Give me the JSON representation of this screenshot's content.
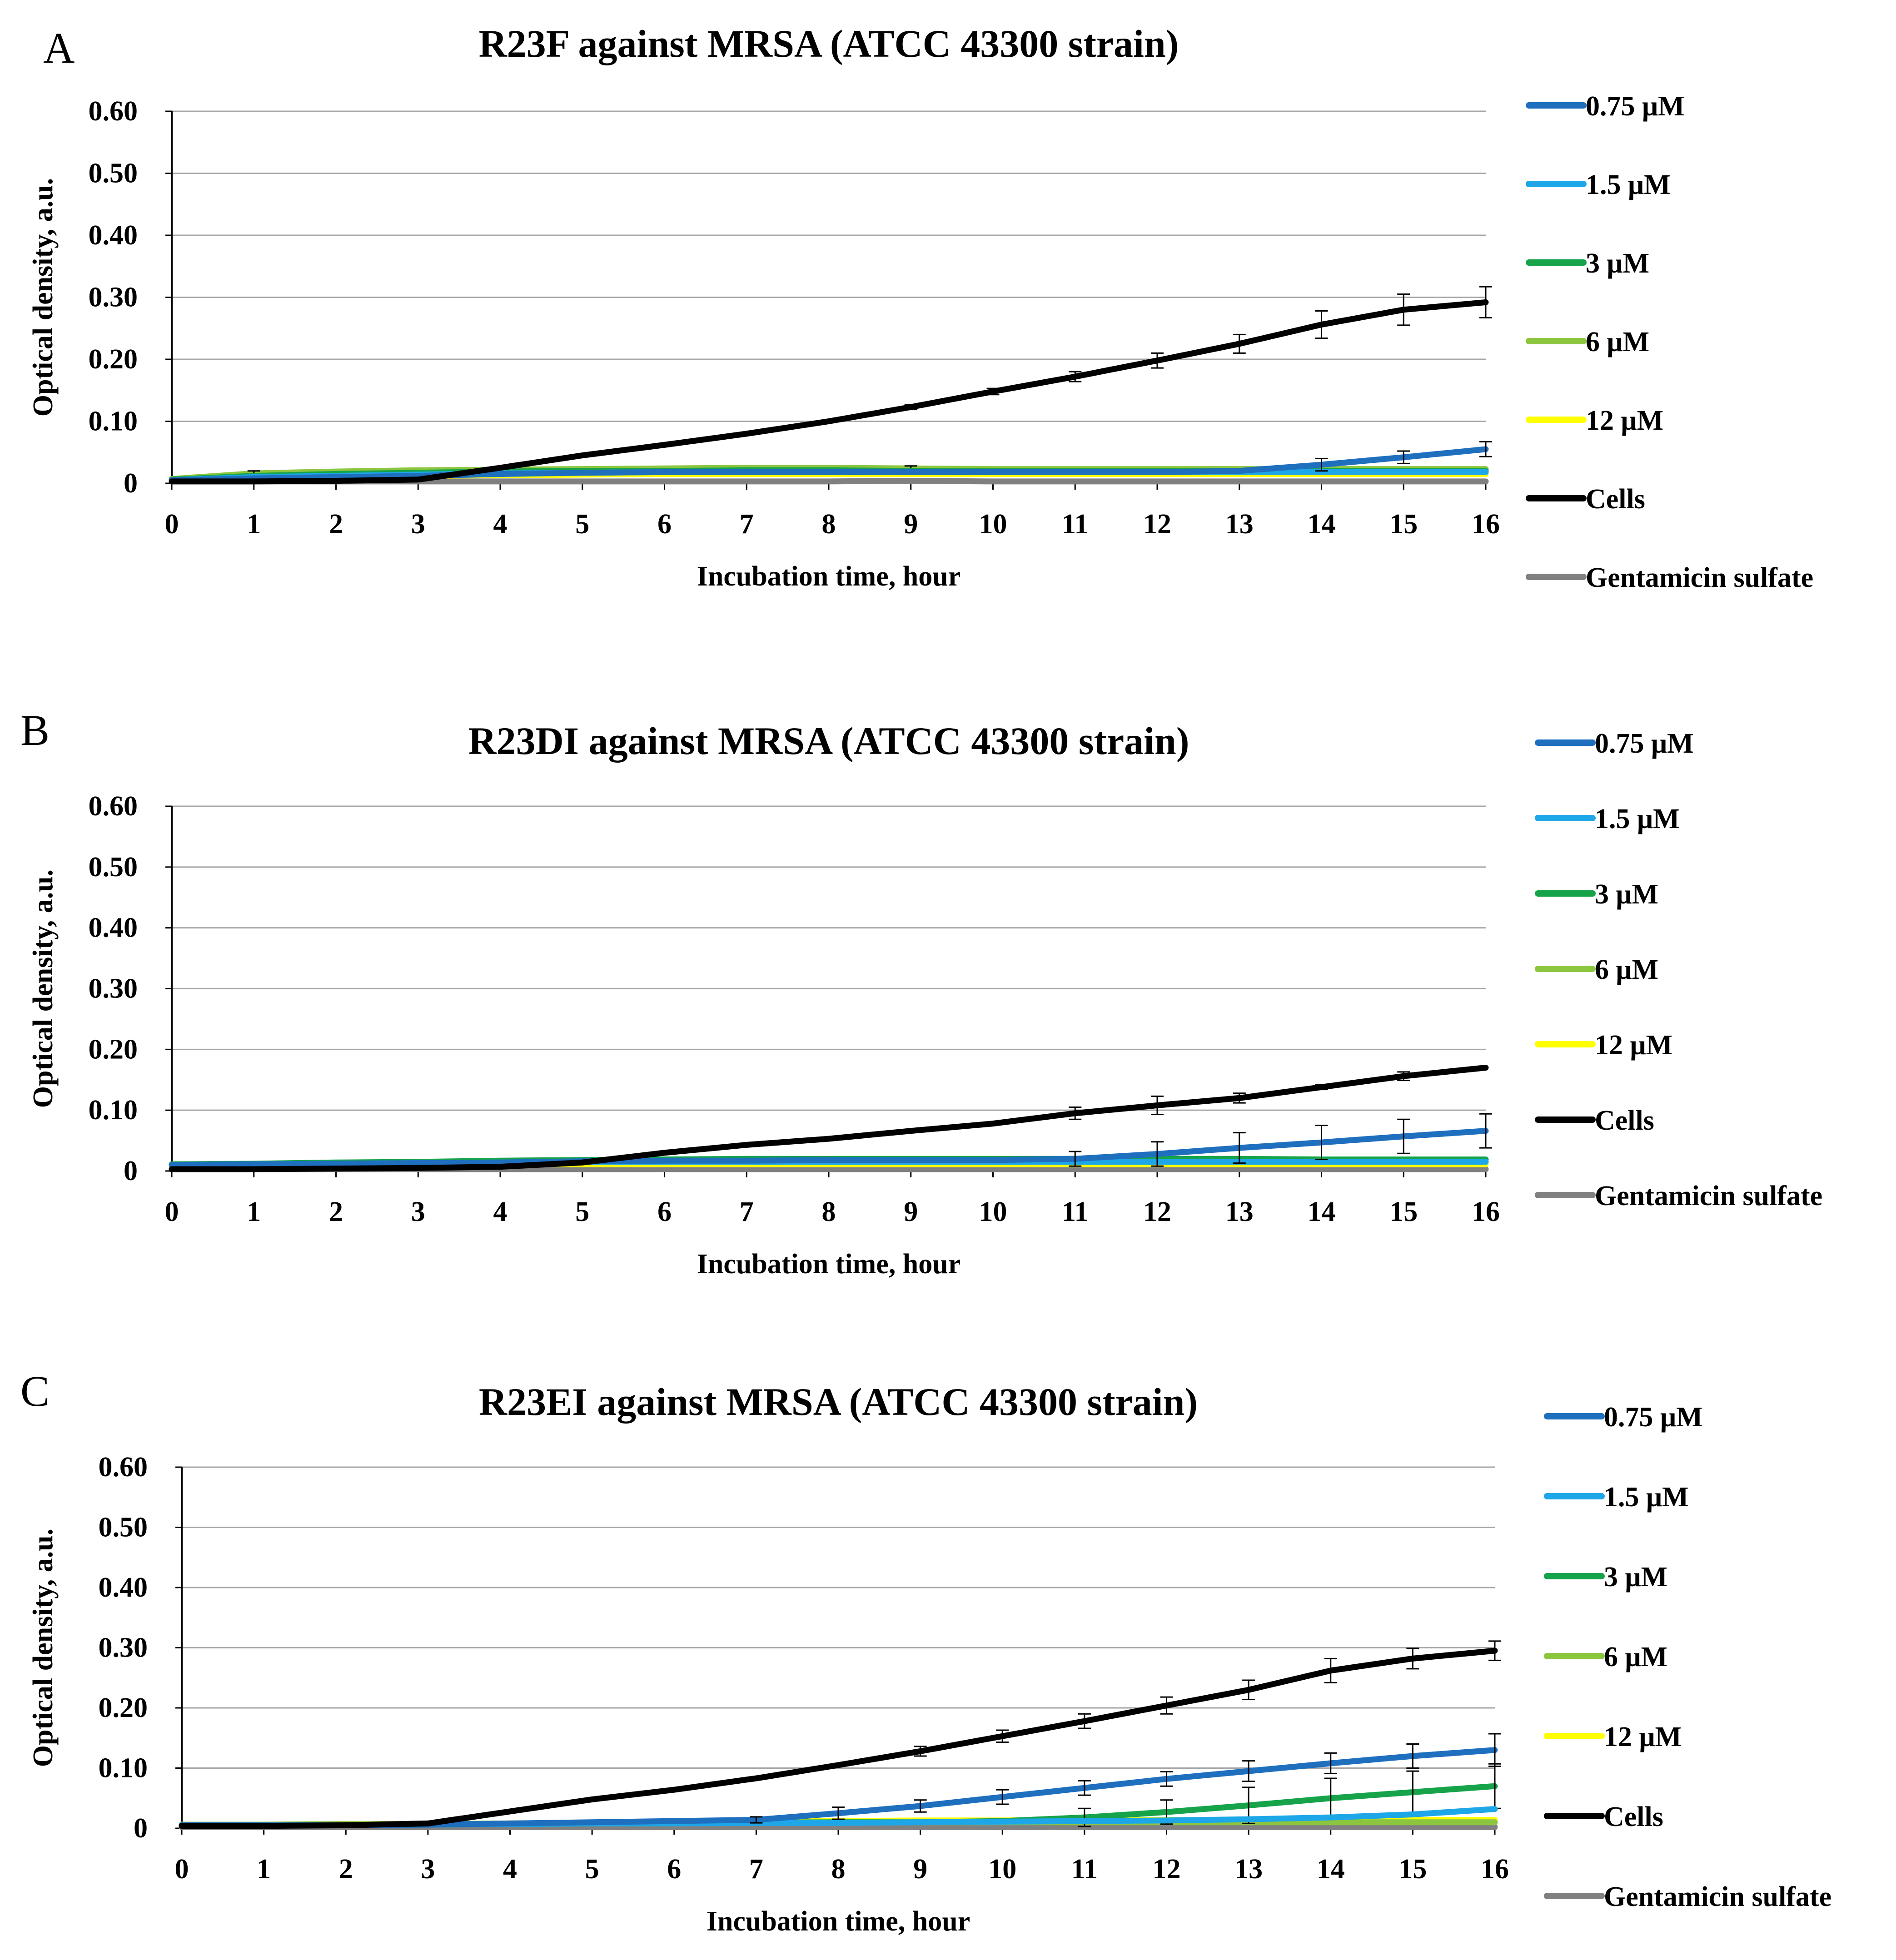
{
  "figure": {
    "panels": [
      {
        "letter": "A"
      },
      {
        "letter": "B"
      },
      {
        "letter": "C"
      }
    ]
  },
  "colors": {
    "c075": "#1f6fbf",
    "c15": "#1ea7e8",
    "c3": "#16a34a",
    "c6": "#8cc63f",
    "c12": "#ffff00",
    "cells": "#000000",
    "gentamicin": "#808080",
    "grid": "#a6a6a6"
  },
  "chart_data": [
    {
      "type": "line",
      "title": "R23F against MRSA (ATCC 43300 strain)",
      "xlabel": "Incubation time, hour",
      "ylabel": "Optical density, a.u.",
      "x": [
        0,
        1,
        2,
        3,
        4,
        5,
        6,
        7,
        8,
        9,
        10,
        11,
        12,
        13,
        14,
        15,
        16
      ],
      "ylim": [
        0,
        0.6
      ],
      "yticks": [
        0,
        0.1,
        0.2,
        0.3,
        0.4,
        0.5,
        0.6
      ],
      "ytick_labels": [
        "0",
        "0.10",
        "0.20",
        "0.30",
        "0.40",
        "0.50",
        "0.60"
      ],
      "xtick_labels": [
        "0",
        "1",
        "2",
        "3",
        "4",
        "5",
        "6",
        "7",
        "8",
        "9",
        "10",
        "11",
        "12",
        "13",
        "14",
        "15",
        "16"
      ],
      "grid": true,
      "legend_position": "right",
      "series": [
        {
          "name": "0.75 μM",
          "color": "#1f6fbf",
          "values": [
            0.005,
            0.008,
            0.01,
            0.012,
            0.015,
            0.017,
            0.018,
            0.018,
            0.018,
            0.018,
            0.018,
            0.018,
            0.018,
            0.02,
            0.03,
            0.042,
            0.055
          ],
          "errors": [
            0,
            0,
            0,
            0,
            0,
            0,
            0,
            0,
            0,
            0,
            0,
            0,
            0,
            0,
            0.01,
            0.01,
            0.012
          ]
        },
        {
          "name": "1.5 μM",
          "color": "#1ea7e8",
          "values": [
            0.005,
            0.01,
            0.012,
            0.014,
            0.016,
            0.017,
            0.018,
            0.018,
            0.018,
            0.018,
            0.018,
            0.018,
            0.018,
            0.018,
            0.018,
            0.018,
            0.018
          ],
          "errors": []
        },
        {
          "name": "3 μM",
          "color": "#16a34a",
          "values": [
            0.006,
            0.012,
            0.015,
            0.017,
            0.019,
            0.02,
            0.02,
            0.021,
            0.021,
            0.02,
            0.02,
            0.02,
            0.02,
            0.02,
            0.02,
            0.02,
            0.02
          ],
          "errors": []
        },
        {
          "name": "6 μM",
          "color": "#8cc63f",
          "values": [
            0.007,
            0.016,
            0.019,
            0.021,
            0.022,
            0.023,
            0.024,
            0.025,
            0.025,
            0.024,
            0.023,
            0.023,
            0.023,
            0.023,
            0.023,
            0.023,
            0.023
          ],
          "errors": [
            0,
            0.004,
            0,
            0,
            0,
            0,
            0,
            0,
            0,
            0.004,
            0,
            0,
            0,
            0,
            0,
            0,
            0
          ]
        },
        {
          "name": "12 μM",
          "color": "#ffff00",
          "values": [
            0.004,
            0.008,
            0.01,
            0.012,
            0.013,
            0.014,
            0.015,
            0.015,
            0.015,
            0.015,
            0.015,
            0.015,
            0.015,
            0.015,
            0.015,
            0.015,
            0.015
          ],
          "errors": []
        },
        {
          "name": "Cells",
          "color": "#000000",
          "values": [
            0.003,
            0.003,
            0.004,
            0.006,
            0.025,
            0.045,
            0.062,
            0.08,
            0.1,
            0.123,
            0.148,
            0.172,
            0.198,
            0.225,
            0.256,
            0.28,
            0.292
          ],
          "errors": [
            0,
            0,
            0,
            0,
            0,
            0,
            0,
            0,
            0,
            0.004,
            0.005,
            0.008,
            0.012,
            0.015,
            0.022,
            0.025,
            0.025
          ]
        },
        {
          "name": "Gentamicin sulfate",
          "color": "#808080",
          "values": [
            0.003,
            0.003,
            0.003,
            0.003,
            0.003,
            0.003,
            0.003,
            0.003,
            0.003,
            0.004,
            0.003,
            0.003,
            0.003,
            0.003,
            0.003,
            0.003,
            0.003
          ],
          "errors": []
        }
      ]
    },
    {
      "type": "line",
      "title": "R23DI against MRSA (ATCC 43300 strain)",
      "xlabel": "Incubation time, hour",
      "ylabel": "Optical density, a.u.",
      "x": [
        0,
        1,
        2,
        3,
        4,
        5,
        6,
        7,
        8,
        9,
        10,
        11,
        12,
        13,
        14,
        15,
        16
      ],
      "ylim": [
        0,
        0.6
      ],
      "yticks": [
        0,
        0.1,
        0.2,
        0.3,
        0.4,
        0.5,
        0.6
      ],
      "ytick_labels": [
        "0",
        "0.10",
        "0.20",
        "0.30",
        "0.40",
        "0.50",
        "0.60"
      ],
      "xtick_labels": [
        "0",
        "1",
        "2",
        "3",
        "4",
        "5",
        "6",
        "7",
        "8",
        "9",
        "10",
        "11",
        "12",
        "13",
        "14",
        "15",
        "16"
      ],
      "grid": true,
      "legend_position": "right",
      "series": [
        {
          "name": "0.75 μM",
          "color": "#1f6fbf",
          "values": [
            0.01,
            0.011,
            0.012,
            0.013,
            0.014,
            0.016,
            0.017,
            0.017,
            0.018,
            0.018,
            0.018,
            0.02,
            0.028,
            0.038,
            0.047,
            0.057,
            0.066
          ],
          "errors": [
            0,
            0,
            0,
            0,
            0,
            0,
            0,
            0,
            0,
            0,
            0,
            0.012,
            0.02,
            0.025,
            0.028,
            0.028,
            0.028
          ]
        },
        {
          "name": "1.5 μM",
          "color": "#1ea7e8",
          "values": [
            0.01,
            0.011,
            0.012,
            0.013,
            0.014,
            0.015,
            0.015,
            0.015,
            0.015,
            0.015,
            0.015,
            0.015,
            0.015,
            0.015,
            0.015,
            0.015,
            0.015
          ],
          "errors": []
        },
        {
          "name": "3 μM",
          "color": "#16a34a",
          "values": [
            0.011,
            0.012,
            0.014,
            0.015,
            0.017,
            0.018,
            0.019,
            0.02,
            0.02,
            0.02,
            0.02,
            0.02,
            0.02,
            0.02,
            0.019,
            0.019,
            0.019
          ],
          "errors": []
        },
        {
          "name": "6 μM",
          "color": "#8cc63f",
          "values": [
            0.01,
            0.011,
            0.012,
            0.013,
            0.014,
            0.015,
            0.015,
            0.015,
            0.015,
            0.015,
            0.015,
            0.015,
            0.015,
            0.015,
            0.015,
            0.015,
            0.015
          ],
          "errors": []
        },
        {
          "name": "12 μM",
          "color": "#ffff00",
          "values": [
            0.009,
            0.01,
            0.011,
            0.011,
            0.011,
            0.011,
            0.011,
            0.011,
            0.011,
            0.011,
            0.011,
            0.011,
            0.011,
            0.011,
            0.011,
            0.011,
            0.011
          ],
          "errors": []
        },
        {
          "name": "Cells",
          "color": "#000000",
          "values": [
            0.003,
            0.003,
            0.004,
            0.005,
            0.007,
            0.014,
            0.03,
            0.043,
            0.053,
            0.066,
            0.078,
            0.095,
            0.108,
            0.12,
            0.138,
            0.156,
            0.17
          ],
          "errors": [
            0,
            0,
            0,
            0,
            0,
            0,
            0,
            0,
            0,
            0,
            0,
            0.01,
            0.015,
            0.008,
            0.004,
            0.007,
            0
          ]
        },
        {
          "name": "Gentamicin sulfate",
          "color": "#808080",
          "values": [
            0.003,
            0.003,
            0.003,
            0.003,
            0.003,
            0.003,
            0.003,
            0.003,
            0.003,
            0.003,
            0.003,
            0.003,
            0.003,
            0.003,
            0.003,
            0.003,
            0.003
          ],
          "errors": []
        }
      ]
    },
    {
      "type": "line",
      "title": "R23EI against MRSA (ATCC 43300 strain)",
      "xlabel": "Incubation time, hour",
      "ylabel": "Optical density, a.u.",
      "x": [
        0,
        1,
        2,
        3,
        4,
        5,
        6,
        7,
        8,
        9,
        10,
        11,
        12,
        13,
        14,
        15,
        16
      ],
      "ylim": [
        0,
        0.6
      ],
      "yticks": [
        0,
        0.1,
        0.2,
        0.3,
        0.4,
        0.5,
        0.6
      ],
      "ytick_labels": [
        "0",
        "0.10",
        "0.20",
        "0.30",
        "0.40",
        "0.50",
        "0.60"
      ],
      "xtick_labels": [
        "0",
        "1",
        "2",
        "3",
        "4",
        "5",
        "6",
        "7",
        "8",
        "9",
        "10",
        "11",
        "12",
        "13",
        "14",
        "15",
        "16"
      ],
      "grid": true,
      "legend_position": "right",
      "series": [
        {
          "name": "0.75 μM",
          "color": "#1f6fbf",
          "values": [
            0.005,
            0.005,
            0.005,
            0.006,
            0.008,
            0.01,
            0.012,
            0.014,
            0.025,
            0.037,
            0.052,
            0.067,
            0.082,
            0.095,
            0.108,
            0.12,
            0.13
          ],
          "errors": [
            0,
            0,
            0,
            0,
            0,
            0,
            0,
            0.005,
            0.01,
            0.01,
            0.012,
            0.012,
            0.012,
            0.017,
            0.017,
            0.02,
            0.027
          ]
        },
        {
          "name": "1.5 μM",
          "color": "#1ea7e8",
          "values": [
            0.005,
            0.005,
            0.005,
            0.006,
            0.007,
            0.008,
            0.008,
            0.009,
            0.009,
            0.01,
            0.011,
            0.012,
            0.013,
            0.015,
            0.018,
            0.023,
            0.032
          ],
          "errors": []
        },
        {
          "name": "3 μM",
          "color": "#16a34a",
          "values": [
            0.005,
            0.005,
            0.005,
            0.006,
            0.007,
            0.008,
            0.009,
            0.009,
            0.01,
            0.01,
            0.012,
            0.018,
            0.027,
            0.038,
            0.05,
            0.06,
            0.07
          ],
          "errors": [
            0,
            0,
            0,
            0,
            0,
            0,
            0,
            0,
            0,
            0,
            0,
            0.015,
            0.02,
            0.03,
            0.033,
            0.035,
            0.037
          ]
        },
        {
          "name": "6 μM",
          "color": "#8cc63f",
          "values": [
            0.006,
            0.006,
            0.007,
            0.007,
            0.008,
            0.009,
            0.009,
            0.01,
            0.01,
            0.01,
            0.01,
            0.01,
            0.01,
            0.01,
            0.01,
            0.01,
            0.01
          ],
          "errors": []
        },
        {
          "name": "12 μM",
          "color": "#ffff00",
          "values": [
            0.006,
            0.006,
            0.007,
            0.007,
            0.008,
            0.009,
            0.01,
            0.011,
            0.012,
            0.013,
            0.013,
            0.014,
            0.014,
            0.014,
            0.014,
            0.014,
            0.014
          ],
          "errors": []
        },
        {
          "name": "Cells",
          "color": "#000000",
          "values": [
            0.004,
            0.004,
            0.005,
            0.008,
            0.028,
            0.048,
            0.064,
            0.083,
            0.105,
            0.128,
            0.153,
            0.178,
            0.204,
            0.23,
            0.262,
            0.282,
            0.295
          ],
          "errors": [
            0,
            0,
            0,
            0,
            0,
            0,
            0,
            0,
            0,
            0.008,
            0.01,
            0.012,
            0.014,
            0.016,
            0.02,
            0.017,
            0.016
          ]
        },
        {
          "name": "Gentamicin sulfate",
          "color": "#808080",
          "values": [
            0.002,
            0.002,
            0.002,
            0.002,
            0.002,
            0.002,
            0.002,
            0.002,
            0.002,
            0.002,
            0.002,
            0.002,
            0.002,
            0.002,
            0.002,
            0.002,
            0.002
          ],
          "errors": []
        }
      ]
    }
  ]
}
